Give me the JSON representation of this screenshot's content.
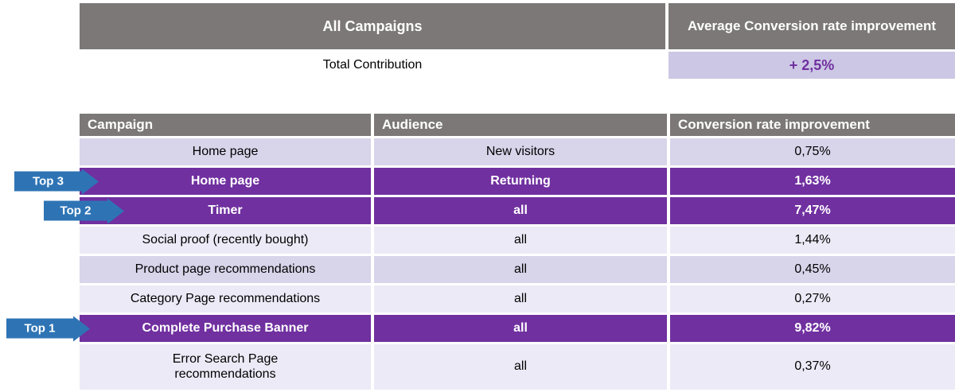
{
  "colors": {
    "header_gray": "#7c7878",
    "highlight_purple": "#7030a0",
    "stripe_dark": "#d8d4ea",
    "stripe_light": "#eceaf6",
    "total_value_bg": "#ccc7e4",
    "badge_blue": "#2e74b5",
    "value_text_purple": "#7030a0"
  },
  "summary": {
    "header_left": "All Campaigns",
    "header_right": "Average Conversion rate improvement",
    "row_label": "Total Contribution",
    "row_value": "+ 2,5%"
  },
  "main_table": {
    "headers": [
      "Campaign",
      "Audience",
      "Conversion rate improvement"
    ],
    "rows": [
      {
        "campaign": "Home page",
        "audience": "New visitors",
        "value": "0,75%",
        "highlight": false,
        "badge": ""
      },
      {
        "campaign": "Home page",
        "audience": "Returning",
        "value": "1,63%",
        "highlight": true,
        "badge": "Top 3"
      },
      {
        "campaign": "Timer",
        "audience": "all",
        "value": "7,47%",
        "highlight": true,
        "badge": "Top 2"
      },
      {
        "campaign": "Social proof (recently bought)",
        "audience": "all",
        "value": "1,44%",
        "highlight": false,
        "badge": ""
      },
      {
        "campaign": "Product page recommendations",
        "audience": "all",
        "value": "0,45%",
        "highlight": false,
        "badge": ""
      },
      {
        "campaign": "Category Page recommendations",
        "audience": "all",
        "value": "0,27%",
        "highlight": false,
        "badge": ""
      },
      {
        "campaign": "Complete Purchase Banner",
        "audience": "all",
        "value": "9,82%",
        "highlight": true,
        "badge": "Top 1"
      },
      {
        "campaign": "Error Search Page recommendations",
        "audience": "all",
        "value": "0,37%",
        "highlight": false,
        "badge": ""
      }
    ]
  },
  "chart_data": {
    "type": "table",
    "title": "All Campaigns",
    "summary_row": {
      "label": "Total Contribution",
      "average_conversion_rate_improvement": "+ 2,5%"
    },
    "columns": [
      "Campaign",
      "Audience",
      "Conversion rate improvement"
    ],
    "rows": [
      [
        "Home page",
        "New visitors",
        "0,75%"
      ],
      [
        "Home page",
        "Returning",
        "1,63%"
      ],
      [
        "Timer",
        "all",
        "7,47%"
      ],
      [
        "Social proof (recently bought)",
        "all",
        "1,44%"
      ],
      [
        "Product page recommendations",
        "all",
        "0,45%"
      ],
      [
        "Category Page recommendations",
        "all",
        "0,27%"
      ],
      [
        "Complete Purchase Banner",
        "all",
        "9,82%"
      ],
      [
        "Error Search Page recommendations",
        "all",
        "0,37%"
      ]
    ],
    "highlighted_rows": [
      "Home page (Returning)",
      "Timer",
      "Complete Purchase Banner"
    ],
    "annotations": [
      {
        "label": "Top 1",
        "target_row": "Complete Purchase Banner"
      },
      {
        "label": "Top 2",
        "target_row": "Timer"
      },
      {
        "label": "Top 3",
        "target_row": "Home page (Returning)"
      }
    ]
  }
}
